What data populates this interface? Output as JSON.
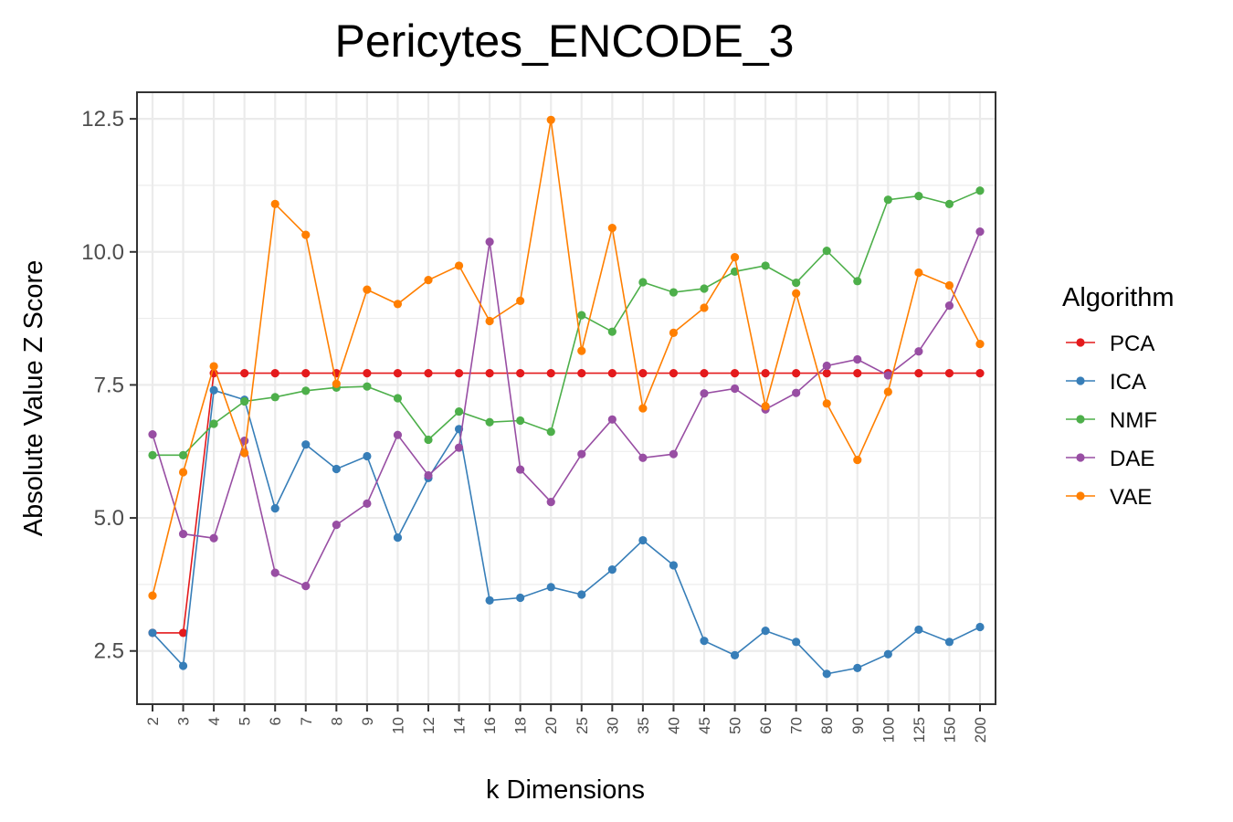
{
  "chart_data": {
    "type": "line",
    "title": "Pericytes_ENCODE_3",
    "xlabel": "k Dimensions",
    "ylabel": "Absolute Value Z Score",
    "categories": [
      "2",
      "3",
      "4",
      "5",
      "6",
      "7",
      "8",
      "9",
      "10",
      "12",
      "14",
      "16",
      "18",
      "20",
      "25",
      "30",
      "35",
      "40",
      "45",
      "50",
      "60",
      "70",
      "80",
      "90",
      "100",
      "125",
      "150",
      "200"
    ],
    "yticks": [
      "2.5",
      "5.0",
      "7.5",
      "10.0",
      "12.5"
    ],
    "ylim": [
      1.5,
      13.0
    ],
    "grid": true,
    "legend_title": "Algorithm",
    "legend_position": "right",
    "series": [
      {
        "name": "PCA",
        "color": "#e41a1c",
        "values": [
          2.84,
          2.84,
          7.72,
          7.72,
          7.72,
          7.72,
          7.72,
          7.72,
          7.72,
          7.72,
          7.72,
          7.72,
          7.72,
          7.72,
          7.72,
          7.72,
          7.72,
          7.72,
          7.72,
          7.72,
          7.72,
          7.72,
          7.72,
          7.72,
          7.72,
          7.72,
          7.72,
          7.72
        ]
      },
      {
        "name": "ICA",
        "color": "#377eb8",
        "values": [
          2.84,
          2.22,
          7.4,
          7.22,
          5.18,
          6.38,
          5.92,
          6.16,
          4.63,
          5.75,
          6.67,
          3.45,
          3.5,
          3.7,
          3.56,
          4.03,
          4.58,
          4.11,
          2.69,
          2.42,
          2.88,
          2.67,
          2.07,
          2.18,
          2.44,
          2.9,
          2.67,
          2.95
        ]
      },
      {
        "name": "NMF",
        "color": "#4daf4a",
        "values": [
          6.18,
          6.18,
          6.77,
          7.19,
          7.27,
          7.39,
          7.45,
          7.47,
          7.25,
          6.47,
          7.0,
          6.8,
          6.83,
          6.62,
          8.81,
          8.5,
          9.43,
          9.24,
          9.31,
          9.63,
          9.74,
          9.42,
          10.02,
          9.45,
          10.98,
          11.05,
          10.9,
          11.15
        ]
      },
      {
        "name": "DAE",
        "color": "#984ea3",
        "values": [
          6.57,
          4.7,
          4.62,
          6.45,
          3.97,
          3.72,
          4.87,
          5.27,
          6.56,
          5.8,
          6.32,
          10.19,
          5.91,
          5.3,
          6.2,
          6.85,
          6.13,
          6.2,
          7.34,
          7.43,
          7.04,
          7.35,
          7.86,
          7.98,
          7.68,
          8.13,
          8.99,
          10.38
        ]
      },
      {
        "name": "VAE",
        "color": "#ff7f00",
        "values": [
          3.54,
          5.86,
          7.85,
          6.22,
          10.9,
          10.32,
          7.52,
          9.29,
          9.02,
          9.47,
          9.74,
          8.7,
          9.08,
          12.48,
          8.14,
          10.45,
          7.06,
          8.48,
          8.95,
          9.9,
          7.1,
          9.22,
          7.15,
          6.09,
          7.37,
          9.61,
          9.37,
          8.27
        ]
      }
    ]
  }
}
